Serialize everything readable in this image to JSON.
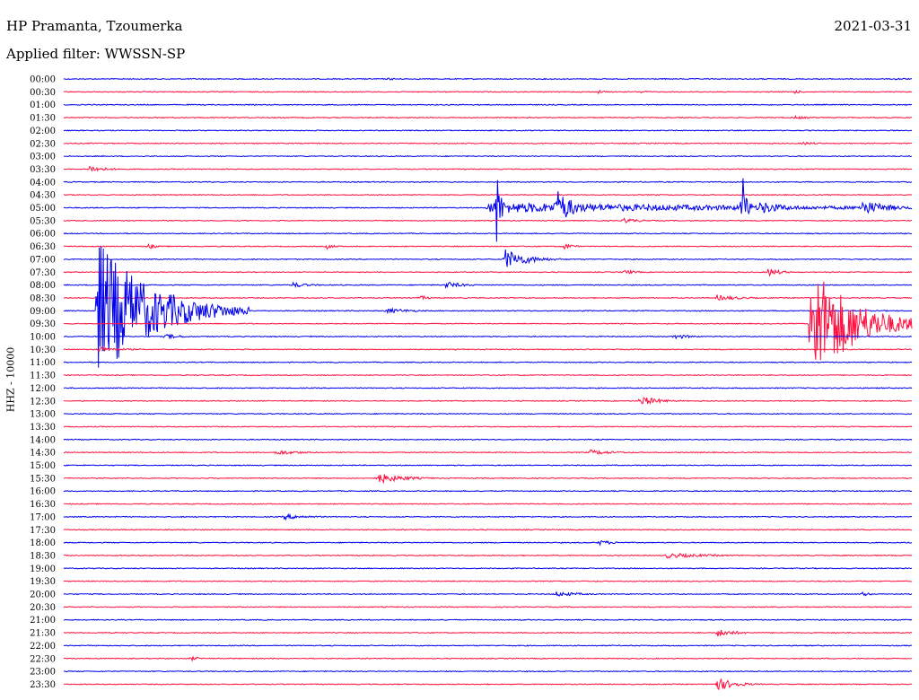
{
  "header": {
    "station": "HP Pramanta, Tzoumerka",
    "date": "2021-03-31",
    "filter": "Applied filter: WWSSN-SP"
  },
  "side_label": "HHZ - 10000",
  "colors": {
    "odd_trace": "#0000ee",
    "even_trace": "#ff1040"
  },
  "chart_data": {
    "type": "line",
    "description_type": "helicorder",
    "row_labels": [
      "00:00",
      "00:30",
      "01:00",
      "01:30",
      "02:00",
      "02:30",
      "03:00",
      "03:30",
      "04:00",
      "04:30",
      "05:00",
      "05:30",
      "06:00",
      "06:30",
      "07:00",
      "07:30",
      "08:00",
      "08:30",
      "09:00",
      "09:30",
      "10:00",
      "10:30",
      "11:00",
      "11:30",
      "12:00",
      "12:30",
      "13:00",
      "13:30",
      "14:00",
      "14:30",
      "15:00",
      "15:30",
      "16:00",
      "16:30",
      "17:00",
      "17:30",
      "18:00",
      "18:30",
      "19:00",
      "19:30",
      "20:00",
      "20:30",
      "21:00",
      "21:30",
      "22:00",
      "22:30",
      "23:00",
      "23:30"
    ],
    "row_minutes": 30,
    "events": [
      {
        "row": 0,
        "t": 0.38,
        "amp": 1.2,
        "dur": 0.03
      },
      {
        "row": 0,
        "t": 0.98,
        "amp": 1.2,
        "dur": 0.02
      },
      {
        "row": 1,
        "t": 0.63,
        "amp": 2,
        "dur": 0.01
      },
      {
        "row": 1,
        "t": 0.68,
        "amp": 2,
        "dur": 0.01
      },
      {
        "row": 1,
        "t": 0.86,
        "amp": 2.5,
        "dur": 0.01
      },
      {
        "row": 3,
        "t": 0.86,
        "amp": 2,
        "dur": 0.02
      },
      {
        "row": 5,
        "t": 0.87,
        "amp": 2,
        "dur": 0.02
      },
      {
        "row": 7,
        "t": 0.03,
        "amp": 4,
        "dur": 0.02
      },
      {
        "row": 10,
        "t": 0.5,
        "amp": 6,
        "dur": 0.34
      },
      {
        "row": 10,
        "t": 0.51,
        "amp": 50,
        "dur": 0.005
      },
      {
        "row": 10,
        "t": 0.58,
        "amp": 22,
        "dur": 0.02
      },
      {
        "row": 10,
        "t": 0.8,
        "amp": 42,
        "dur": 0.005
      },
      {
        "row": 10,
        "t": 0.82,
        "amp": 8,
        "dur": 0.03
      },
      {
        "row": 10,
        "t": 0.94,
        "amp": 9,
        "dur": 0.03
      },
      {
        "row": 11,
        "t": 0.66,
        "amp": 3,
        "dur": 0.02
      },
      {
        "row": 13,
        "t": 0.1,
        "amp": 3,
        "dur": 0.01
      },
      {
        "row": 13,
        "t": 0.31,
        "amp": 3,
        "dur": 0.01
      },
      {
        "row": 13,
        "t": 0.59,
        "amp": 4,
        "dur": 0.01
      },
      {
        "row": 14,
        "t": 0.52,
        "amp": 12,
        "dur": 0.025
      },
      {
        "row": 15,
        "t": 0.66,
        "amp": 3,
        "dur": 0.015
      },
      {
        "row": 15,
        "t": 0.83,
        "amp": 5,
        "dur": 0.015
      },
      {
        "row": 16,
        "t": 0.27,
        "amp": 3,
        "dur": 0.02
      },
      {
        "row": 16,
        "t": 0.45,
        "amp": 4,
        "dur": 0.02
      },
      {
        "row": 17,
        "t": 0.42,
        "amp": 3,
        "dur": 0.01
      },
      {
        "row": 17,
        "t": 0.77,
        "amp": 3,
        "dur": 0.03
      },
      {
        "row": 18,
        "t": 0.04,
        "amp": 80,
        "dur": 0.06
      },
      {
        "row": 18,
        "t": 0.38,
        "amp": 3,
        "dur": 0.03
      },
      {
        "row": 19,
        "t": 0.88,
        "amp": 70,
        "dur": 0.05
      },
      {
        "row": 20,
        "t": 0.12,
        "amp": 3,
        "dur": 0.02
      },
      {
        "row": 20,
        "t": 0.72,
        "amp": 3,
        "dur": 0.02
      },
      {
        "row": 21,
        "t": 0.04,
        "amp": 3,
        "dur": 0.03
      },
      {
        "row": 25,
        "t": 0.68,
        "amp": 6,
        "dur": 0.02
      },
      {
        "row": 29,
        "t": 0.25,
        "amp": 3,
        "dur": 0.03
      },
      {
        "row": 29,
        "t": 0.62,
        "amp": 3,
        "dur": 0.03
      },
      {
        "row": 31,
        "t": 0.37,
        "amp": 6,
        "dur": 0.03
      },
      {
        "row": 34,
        "t": 0.26,
        "amp": 3,
        "dur": 0.03
      },
      {
        "row": 36,
        "t": 0.63,
        "amp": 3,
        "dur": 0.02
      },
      {
        "row": 37,
        "t": 0.71,
        "amp": 3,
        "dur": 0.05
      },
      {
        "row": 40,
        "t": 0.58,
        "amp": 3,
        "dur": 0.03
      },
      {
        "row": 40,
        "t": 0.94,
        "amp": 3,
        "dur": 0.01
      },
      {
        "row": 43,
        "t": 0.77,
        "amp": 5,
        "dur": 0.02
      },
      {
        "row": 45,
        "t": 0.15,
        "amp": 3,
        "dur": 0.01
      },
      {
        "row": 47,
        "t": 0.77,
        "amp": 8,
        "dur": 0.02
      }
    ]
  }
}
